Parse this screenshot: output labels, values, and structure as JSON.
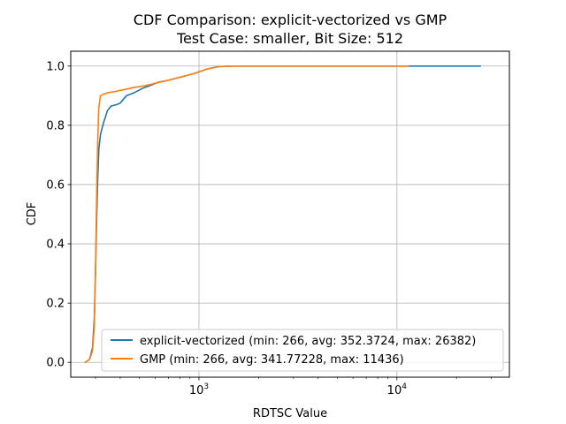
{
  "chart_data": {
    "type": "line",
    "title": "CDF Comparison: explicit-vectorized vs GMP",
    "subtitle": "Test Case: smaller, Bit Size: 512",
    "xlabel": "RDTSC Value",
    "ylabel": "CDF",
    "xscale": "log",
    "xlim": [
      225,
      37000
    ],
    "ylim": [
      -0.05,
      1.05
    ],
    "grid": true,
    "legend_position": "lower-right",
    "x_ticks": [
      {
        "base": "10",
        "exp": "3",
        "value": 1000
      },
      {
        "base": "10",
        "exp": "4",
        "value": 10000
      }
    ],
    "y_ticks": [
      {
        "label": "0.0",
        "value": 0.0
      },
      {
        "label": "0.2",
        "value": 0.2
      },
      {
        "label": "0.4",
        "value": 0.4
      },
      {
        "label": "0.6",
        "value": 0.6
      },
      {
        "label": "0.8",
        "value": 0.8
      },
      {
        "label": "1.0",
        "value": 1.0
      }
    ],
    "series": [
      {
        "name": "explicit-vectorized (min: 266, avg: 352.3724, max: 26382)",
        "color": "#1f77b4",
        "x": [
          266,
          280,
          290,
          296,
          300,
          304,
          308,
          312,
          318,
          330,
          345,
          360,
          385,
          400,
          430,
          470,
          520,
          570,
          620,
          700,
          800,
          950,
          1100,
          1250,
          1500,
          3000,
          8000,
          15000,
          26382
        ],
        "y": [
          0.0,
          0.01,
          0.05,
          0.15,
          0.3,
          0.48,
          0.62,
          0.72,
          0.77,
          0.81,
          0.85,
          0.865,
          0.87,
          0.875,
          0.9,
          0.91,
          0.925,
          0.935,
          0.945,
          0.952,
          0.962,
          0.975,
          0.99,
          0.998,
          1.0,
          1.0,
          1.0,
          1.0,
          1.0
        ]
      },
      {
        "name": "GMP (min: 266, avg: 341.77228, max: 11436)",
        "color": "#ff7f0e",
        "x": [
          266,
          280,
          290,
          296,
          300,
          304,
          308,
          312,
          318,
          330,
          345,
          360,
          385,
          400,
          430,
          470,
          520,
          570,
          620,
          700,
          800,
          950,
          1100,
          1250,
          1500,
          3000,
          8000,
          11436
        ],
        "y": [
          0.0,
          0.01,
          0.04,
          0.12,
          0.3,
          0.55,
          0.75,
          0.86,
          0.9,
          0.905,
          0.91,
          0.912,
          0.915,
          0.918,
          0.922,
          0.928,
          0.932,
          0.938,
          0.944,
          0.952,
          0.962,
          0.975,
          0.99,
          0.998,
          1.0,
          1.0,
          1.0,
          1.0
        ]
      }
    ]
  }
}
